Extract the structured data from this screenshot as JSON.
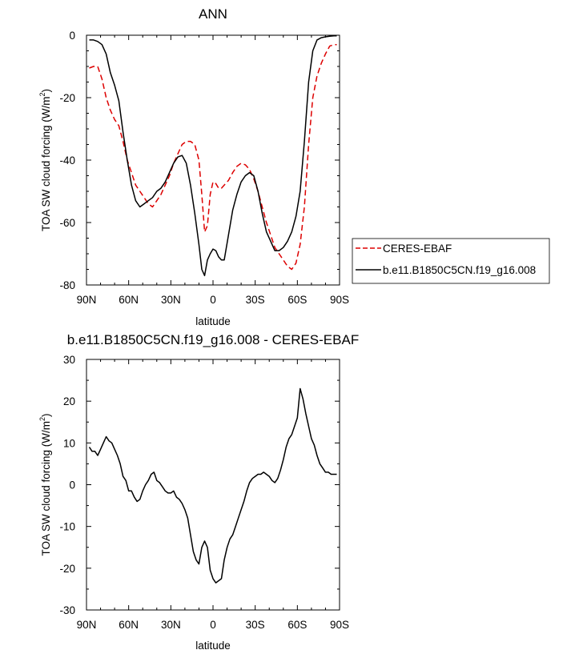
{
  "chart_data": [
    {
      "type": "line",
      "title": "ANN",
      "xlabel": "latitude",
      "ylabel": "TOA SW cloud forcing (W/m",
      "ylabel_sup": "2",
      "ylabel_close": ")",
      "xlim": [
        90,
        -90
      ],
      "ylim": [
        -80,
        0
      ],
      "xticks": [
        {
          "value": 90,
          "label": "90N"
        },
        {
          "value": 60,
          "label": "60N"
        },
        {
          "value": 30,
          "label": "30N"
        },
        {
          "value": 0,
          "label": "0"
        },
        {
          "value": -30,
          "label": "30S"
        },
        {
          "value": -60,
          "label": "60S"
        },
        {
          "value": -90,
          "label": "90S"
        }
      ],
      "yticks": [
        {
          "value": 0,
          "label": "0"
        },
        {
          "value": -20,
          "label": "-20"
        },
        {
          "value": -40,
          "label": "-40"
        },
        {
          "value": -60,
          "label": "-60"
        },
        {
          "value": -80,
          "label": "-80"
        }
      ],
      "legend_position": "right",
      "series": [
        {
          "name": "CERES-EBAF",
          "color": "#dd0000",
          "dash": "dashed",
          "x": [
            88,
            85,
            82,
            79,
            76,
            73,
            70,
            67,
            64,
            61,
            58,
            55,
            52,
            49,
            46,
            43,
            40,
            37,
            34,
            31,
            28,
            25,
            22,
            19,
            16,
            13,
            10,
            8,
            6,
            4,
            2,
            0,
            -2,
            -4,
            -6,
            -8,
            -11,
            -14,
            -17,
            -20,
            -23,
            -26,
            -29,
            -32,
            -35,
            -38,
            -41,
            -44,
            -47,
            -50,
            -53,
            -56,
            -59,
            -62,
            -65,
            -68,
            -71,
            -74,
            -77,
            -80,
            -83,
            -86,
            -88
          ],
          "values": [
            -10.5,
            -10,
            -10,
            -14,
            -20,
            -24,
            -27,
            -29,
            -34,
            -40,
            -44,
            -48,
            -50,
            -52,
            -54,
            -55,
            -53,
            -51,
            -48,
            -45,
            -41,
            -38,
            -35,
            -34,
            -34,
            -35,
            -40,
            -51,
            -63,
            -61,
            -51,
            -47,
            -47.5,
            -49,
            -49,
            -48,
            -46.5,
            -44,
            -42,
            -41,
            -41.5,
            -43,
            -46,
            -50,
            -55,
            -60,
            -64,
            -68,
            -70,
            -72,
            -74,
            -75,
            -73,
            -67,
            -55,
            -35,
            -20,
            -13,
            -9,
            -6,
            -3.5,
            -3,
            -3
          ]
        },
        {
          "name": "b.e11.B1850C5CN.f19_g16.008",
          "color": "#000000",
          "dash": "solid",
          "x": [
            88,
            85,
            82,
            79,
            76,
            73,
            70,
            67,
            64,
            61,
            58,
            55,
            52,
            49,
            46,
            43,
            40,
            37,
            34,
            31,
            28,
            25,
            22,
            19,
            16,
            13,
            10,
            8,
            6,
            4,
            2,
            0,
            -2,
            -4,
            -6,
            -8,
            -11,
            -14,
            -17,
            -20,
            -23,
            -26,
            -29,
            -32,
            -35,
            -38,
            -41,
            -44,
            -47,
            -50,
            -53,
            -56,
            -59,
            -62,
            -65,
            -68,
            -71,
            -74,
            -77,
            -80,
            -83,
            -86,
            -88
          ],
          "values": [
            -1.5,
            -1.5,
            -2,
            -3,
            -6,
            -12,
            -16,
            -21,
            -31,
            -40,
            -48,
            -53,
            -55,
            -54,
            -53,
            -52,
            -50,
            -49,
            -47,
            -44,
            -41,
            -39,
            -38.5,
            -41,
            -48,
            -57,
            -67,
            -75,
            -77,
            -72,
            -70,
            -68.5,
            -69,
            -71,
            -72,
            -72,
            -64,
            -56,
            -51,
            -47,
            -45,
            -44,
            -45,
            -50,
            -57,
            -63,
            -66,
            -69,
            -69,
            -68,
            -66,
            -63,
            -58,
            -50,
            -34,
            -15,
            -5,
            -1.5,
            -0.8,
            -0.5,
            -0.3,
            -0.2,
            -0.2
          ]
        }
      ]
    },
    {
      "type": "line",
      "title": "b.e11.B1850C5CN.f19_g16.008 - CERES-EBAF",
      "xlabel": "latitude",
      "ylabel": "TOA SW cloud forcing (W/m",
      "ylabel_sup": "2",
      "ylabel_close": ")",
      "xlim": [
        90,
        -90
      ],
      "ylim": [
        -30,
        30
      ],
      "xticks": [
        {
          "value": 90,
          "label": "90N"
        },
        {
          "value": 60,
          "label": "60N"
        },
        {
          "value": 30,
          "label": "30N"
        },
        {
          "value": 0,
          "label": "0"
        },
        {
          "value": -30,
          "label": "30S"
        },
        {
          "value": -60,
          "label": "60S"
        },
        {
          "value": -90,
          "label": "90S"
        }
      ],
      "yticks": [
        {
          "value": 30,
          "label": "30"
        },
        {
          "value": 20,
          "label": "20"
        },
        {
          "value": 10,
          "label": "10"
        },
        {
          "value": 0,
          "label": "0"
        },
        {
          "value": -10,
          "label": "-10"
        },
        {
          "value": -20,
          "label": "-20"
        },
        {
          "value": -30,
          "label": "-30"
        }
      ],
      "series": [
        {
          "color": "#000000",
          "dash": "solid",
          "x": [
            88,
            86,
            84,
            82,
            80,
            78,
            76,
            74,
            72,
            70,
            68,
            66,
            64,
            62,
            60,
            58,
            56,
            54,
            52,
            50,
            48,
            46,
            44,
            42,
            40,
            38,
            36,
            34,
            32,
            30,
            28,
            26,
            24,
            22,
            20,
            18,
            16,
            14,
            12,
            10,
            8,
            6,
            4,
            2,
            0,
            -2,
            -4,
            -6,
            -8,
            -10,
            -12,
            -14,
            -16,
            -18,
            -20,
            -22,
            -24,
            -26,
            -28,
            -30,
            -32,
            -34,
            -36,
            -38,
            -40,
            -42,
            -44,
            -46,
            -48,
            -50,
            -52,
            -54,
            -56,
            -58,
            -60,
            -62,
            -64,
            -66,
            -68,
            -70,
            -72,
            -74,
            -76,
            -78,
            -80,
            -82,
            -84,
            -86,
            -88
          ],
          "values": [
            9,
            8,
            8,
            7,
            8.5,
            10,
            11.5,
            10.5,
            10,
            8.5,
            7,
            5,
            2,
            1,
            -1.5,
            -1.5,
            -3,
            -4,
            -3.5,
            -1.5,
            0,
            1,
            2.5,
            3,
            1,
            0.5,
            -0.5,
            -1.5,
            -2,
            -2,
            -1.5,
            -3,
            -3.5,
            -4.5,
            -6,
            -8,
            -12,
            -16,
            -18,
            -19,
            -15,
            -13.5,
            -15,
            -20.5,
            -22.5,
            -23.5,
            -23,
            -22.5,
            -18,
            -15,
            -13,
            -12,
            -10,
            -8,
            -6,
            -4,
            -1.5,
            0.5,
            1.5,
            2,
            2.5,
            2.5,
            3,
            2.5,
            2,
            1,
            0.5,
            1.5,
            3.5,
            6,
            9,
            11,
            12,
            14,
            16,
            23,
            20.5,
            17,
            14,
            11,
            9.5,
            7,
            5,
            4,
            3,
            3,
            2.5,
            2.5,
            2.5
          ]
        }
      ]
    }
  ]
}
